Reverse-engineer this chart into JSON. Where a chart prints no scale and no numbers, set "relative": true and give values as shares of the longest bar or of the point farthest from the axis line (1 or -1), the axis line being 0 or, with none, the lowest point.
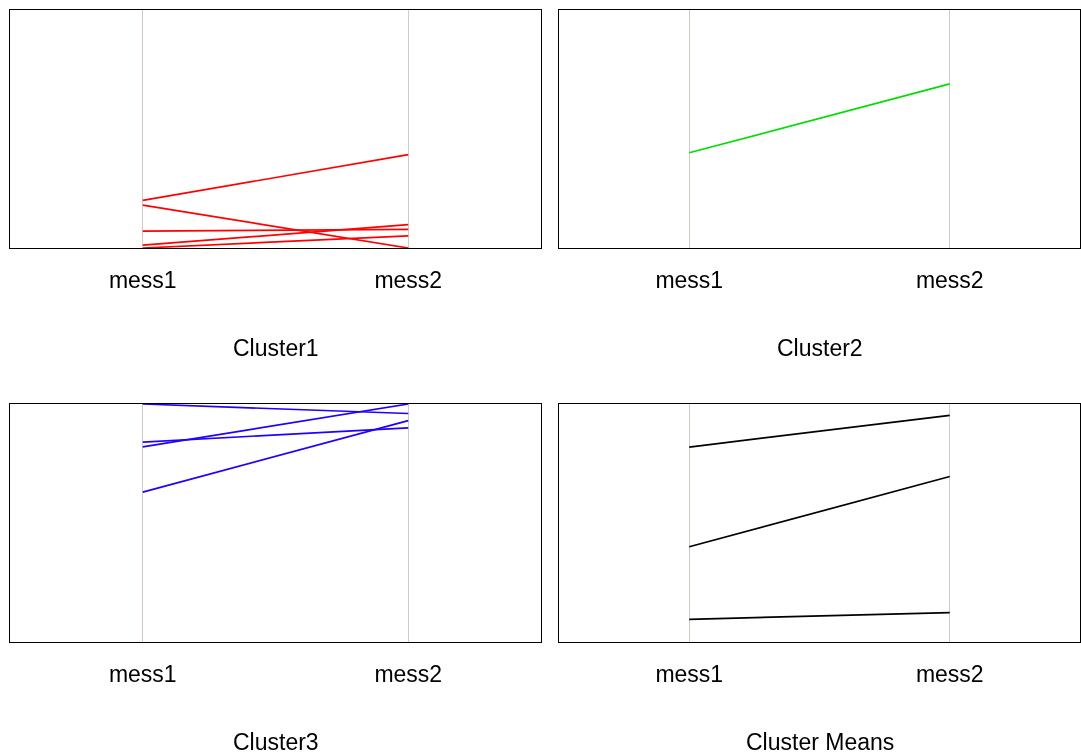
{
  "chart_data": [
    {
      "type": "line",
      "relative": true,
      "ylim": [
        0,
        2.55
      ],
      "categories": [
        "mess1",
        "mess2"
      ],
      "xlabel": "Cluster1",
      "grid": "x",
      "series": [
        {
          "color": "#ff0000",
          "values": [
            0.51,
            1
          ]
        },
        {
          "color": "#ff0000",
          "values": [
            0.46,
            0
          ]
        },
        {
          "color": "#ff0000",
          "values": [
            0.18,
            0.2
          ]
        },
        {
          "color": "#ff0000",
          "values": [
            0.03,
            0.25
          ]
        },
        {
          "color": "#ff0000",
          "values": [
            0,
            0.13
          ]
        }
      ]
    },
    {
      "type": "line",
      "relative": true,
      "ylim": [
        0,
        1.45
      ],
      "categories": [
        "mess1",
        "mess2"
      ],
      "xlabel": "Cluster2",
      "grid": "x",
      "series": [
        {
          "color": "#00dd00",
          "values": [
            0.58,
            1
          ]
        }
      ]
    },
    {
      "type": "line",
      "relative": true,
      "categories": [
        "mess1",
        "mess2"
      ],
      "xlabel": "Cluster3",
      "grid": "x",
      "series": [
        {
          "color": "#2000ff",
          "values": [
            1,
            0.96
          ]
        },
        {
          "color": "#2000ff",
          "values": [
            0.82,
            1
          ]
        },
        {
          "color": "#2000ff",
          "values": [
            0.84,
            0.9
          ]
        },
        {
          "color": "#2000ff",
          "values": [
            0.63,
            0.93
          ]
        }
      ]
    },
    {
      "type": "line",
      "relative": true,
      "ylim": [
        0,
        1.05
      ],
      "categories": [
        "mess1",
        "mess2"
      ],
      "xlabel": "Cluster Means",
      "grid": "x",
      "series": [
        {
          "color": "#000000",
          "values": [
            0.86,
            1
          ]
        },
        {
          "color": "#000000",
          "values": [
            0.42,
            0.73
          ]
        },
        {
          "color": "#000000",
          "values": [
            0.1,
            0.13
          ]
        }
      ]
    }
  ]
}
